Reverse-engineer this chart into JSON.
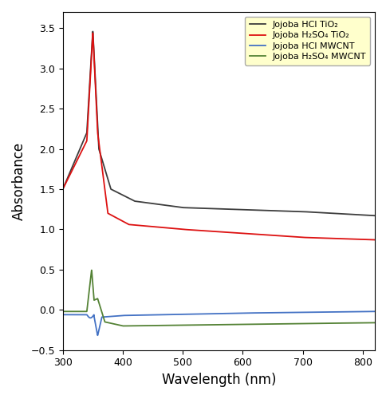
{
  "title": "",
  "xlabel": "Wavelength (nm)",
  "ylabel": "Absorbance",
  "xlim": [
    300,
    820
  ],
  "ylim": [
    -0.5,
    3.7
  ],
  "yticks": [
    -0.5,
    0.0,
    0.5,
    1.0,
    1.5,
    2.0,
    2.5,
    3.0,
    3.5
  ],
  "xticks": [
    300,
    400,
    500,
    600,
    700,
    800
  ],
  "legend_labels": [
    "Jojoba HCl TiO₂",
    "Jojoba H₂SO₄ TiO₂",
    "Jojoba HCl MWCNT",
    "Jojoba H₂SO₄ MWCNT"
  ],
  "legend_facecolor": "#ffffcc",
  "line_colors": [
    "#3d3d3d",
    "#dd1111",
    "#4472c4",
    "#548235"
  ],
  "background_color": "#ffffff",
  "figsize": [
    4.85,
    5.0
  ],
  "dpi": 100
}
